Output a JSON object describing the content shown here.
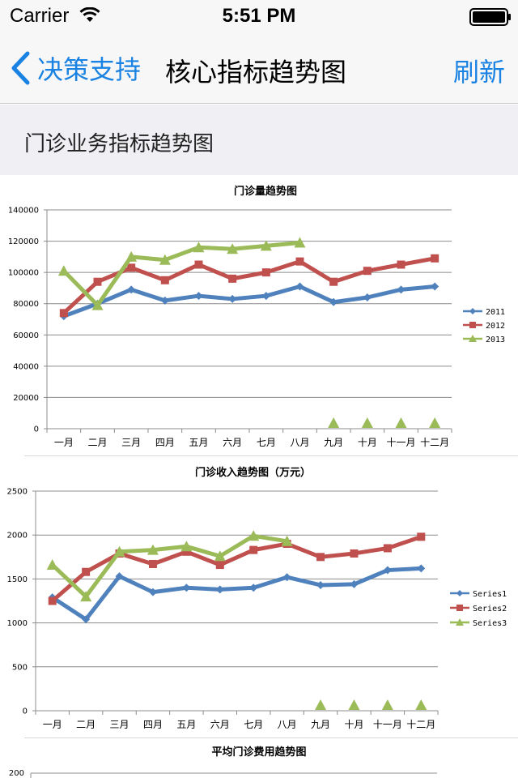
{
  "status": {
    "carrier": "Carrier",
    "time": "5:51 PM"
  },
  "nav": {
    "back_label": "决策支持",
    "title": "核心指标趋势图",
    "refresh_label": "刷新"
  },
  "section": {
    "title": "门诊业务指标趋势图"
  },
  "colors": {
    "accent": "#1a82e2",
    "s1": "#4f81bd",
    "s2": "#c0504d",
    "s3": "#9bbb59"
  },
  "chart_data": [
    {
      "type": "line",
      "title": "门诊量趋势图",
      "categories": [
        "一月",
        "二月",
        "三月",
        "四月",
        "五月",
        "六月",
        "七月",
        "八月",
        "九月",
        "十月",
        "十一月",
        "十二月"
      ],
      "ylim": [
        0,
        140000
      ],
      "yticks": [
        0,
        20000,
        40000,
        60000,
        80000,
        100000,
        120000,
        140000
      ],
      "grid": true,
      "legend": "right",
      "series": [
        {
          "name": "2011",
          "values": [
            72000,
            80000,
            89000,
            82000,
            85000,
            83000,
            85000,
            91000,
            81000,
            84000,
            89000,
            91000
          ]
        },
        {
          "name": "2012",
          "values": [
            74000,
            94000,
            103000,
            95000,
            105000,
            96000,
            100000,
            107000,
            94000,
            101000,
            105000,
            109000
          ]
        },
        {
          "name": "2013",
          "values": [
            101000,
            79000,
            110000,
            108000,
            116000,
            115000,
            117000,
            119000,
            0,
            0,
            0,
            0
          ]
        }
      ]
    },
    {
      "type": "line",
      "title": "门诊收入趋势图（万元）",
      "categories": [
        "一月",
        "二月",
        "三月",
        "四月",
        "五月",
        "六月",
        "七月",
        "八月",
        "九月",
        "十月",
        "十一月",
        "十二月"
      ],
      "ylim": [
        0,
        2500
      ],
      "yticks": [
        0,
        500,
        1000,
        1500,
        2000,
        2500
      ],
      "grid": true,
      "legend": "right",
      "series": [
        {
          "name": "Series1",
          "values": [
            1290,
            1040,
            1530,
            1350,
            1400,
            1380,
            1400,
            1520,
            1430,
            1440,
            1600,
            1620
          ]
        },
        {
          "name": "Series2",
          "values": [
            1250,
            1580,
            1790,
            1670,
            1810,
            1660,
            1830,
            1900,
            1750,
            1790,
            1850,
            1980
          ]
        },
        {
          "name": "Series3",
          "values": [
            1660,
            1300,
            1810,
            1830,
            1870,
            1760,
            1990,
            1930,
            0,
            0,
            0,
            0
          ]
        }
      ]
    },
    {
      "type": "line",
      "title": "平均门诊费用趋势图",
      "yticks": [
        200
      ],
      "grid": true
    }
  ]
}
